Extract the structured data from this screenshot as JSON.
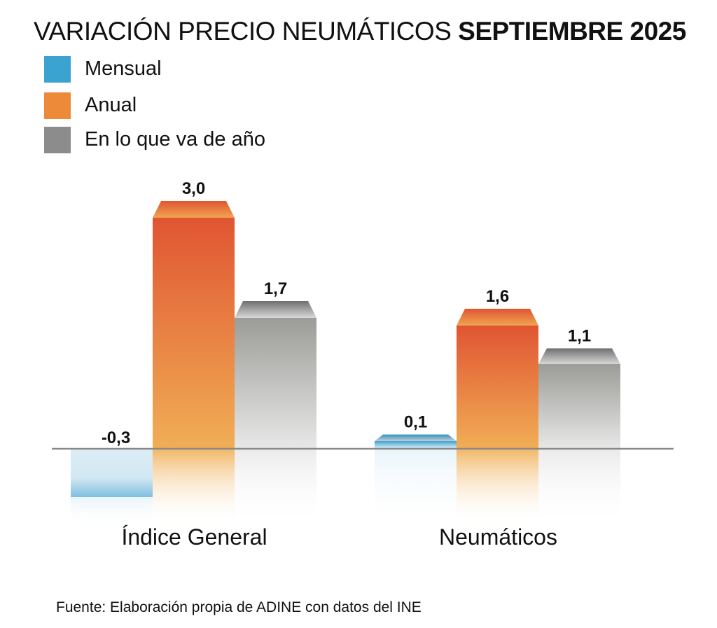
{
  "chart_data": {
    "type": "bar",
    "title": "VARIACIÓN PRECIO NEUMÁTICOS",
    "title_bold": "SEPTIEMBRE 2025",
    "categories": [
      "Índice General",
      "Neumáticos"
    ],
    "series": [
      {
        "name": "Mensual",
        "values": [
          -0.3,
          0.1
        ],
        "labels": [
          "-0,3",
          "0,1"
        ],
        "color": "#3ba3d0"
      },
      {
        "name": "Anual",
        "values": [
          3.0,
          1.6
        ],
        "labels": [
          "3,0",
          "1,6"
        ],
        "color": "#ec8a3a"
      },
      {
        "name": "En lo que va de año",
        "values": [
          1.7,
          1.1
        ],
        "labels": [
          "1,7",
          "1,1"
        ],
        "color": "#8c8c8c"
      }
    ],
    "xlabel": "",
    "ylabel": "",
    "grid": false,
    "legend_position": "top-left",
    "source": "Fuente: Elaboración propia de ADINE con datos del INE"
  }
}
